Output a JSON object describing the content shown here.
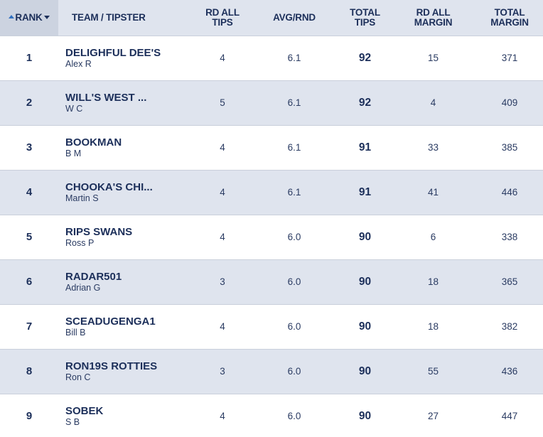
{
  "headers": {
    "rank": "RANK",
    "team": "TEAM / TIPSTER",
    "rd_all_tips": [
      "RD ALL",
      "TIPS"
    ],
    "avg_rnd": "AVG/RND",
    "total_tips": [
      "TOTAL",
      "TIPS"
    ],
    "rd_all_margin": [
      "RD ALL",
      "MARGIN"
    ],
    "total_margin": [
      "TOTAL",
      "MARGIN"
    ]
  },
  "sort": {
    "column": "rank",
    "direction": "ascending"
  },
  "colors": {
    "header_bg": "#dfe4ee",
    "sorted_header_bg": "#ccd3e0",
    "stripe_bg": "#dfe4ee",
    "text": "#1c2f5a",
    "sort_arrow": "#2f6fc0"
  },
  "rows": [
    {
      "rank": "1",
      "team": "DELIGHFUL DEE'S",
      "tipster": "Alex R",
      "rd_all_tips": "4",
      "avg_rnd": "6.1",
      "total_tips": "92",
      "rd_all_margin": "15",
      "total_margin": "371"
    },
    {
      "rank": "2",
      "team": "WILL'S WEST ...",
      "tipster": "W C",
      "rd_all_tips": "5",
      "avg_rnd": "6.1",
      "total_tips": "92",
      "rd_all_margin": "4",
      "total_margin": "409"
    },
    {
      "rank": "3",
      "team": "BOOKMAN",
      "tipster": "B M",
      "rd_all_tips": "4",
      "avg_rnd": "6.1",
      "total_tips": "91",
      "rd_all_margin": "33",
      "total_margin": "385"
    },
    {
      "rank": "4",
      "team": "CHOOKA'S CHI...",
      "tipster": "Martin S",
      "rd_all_tips": "4",
      "avg_rnd": "6.1",
      "total_tips": "91",
      "rd_all_margin": "41",
      "total_margin": "446"
    },
    {
      "rank": "5",
      "team": "RIPS SWANS",
      "tipster": "Ross P",
      "rd_all_tips": "4",
      "avg_rnd": "6.0",
      "total_tips": "90",
      "rd_all_margin": "6",
      "total_margin": "338"
    },
    {
      "rank": "6",
      "team": "RADAR501",
      "tipster": "Adrian G",
      "rd_all_tips": "3",
      "avg_rnd": "6.0",
      "total_tips": "90",
      "rd_all_margin": "18",
      "total_margin": "365"
    },
    {
      "rank": "7",
      "team": "SCEADUGENGA1",
      "tipster": "Bill B",
      "rd_all_tips": "4",
      "avg_rnd": "6.0",
      "total_tips": "90",
      "rd_all_margin": "18",
      "total_margin": "382"
    },
    {
      "rank": "8",
      "team": "RON19S ROTTIES",
      "tipster": "Ron C",
      "rd_all_tips": "3",
      "avg_rnd": "6.0",
      "total_tips": "90",
      "rd_all_margin": "55",
      "total_margin": "436"
    },
    {
      "rank": "9",
      "team": "SOBEK",
      "tipster": "S B",
      "rd_all_tips": "4",
      "avg_rnd": "6.0",
      "total_tips": "90",
      "rd_all_margin": "27",
      "total_margin": "447"
    }
  ]
}
